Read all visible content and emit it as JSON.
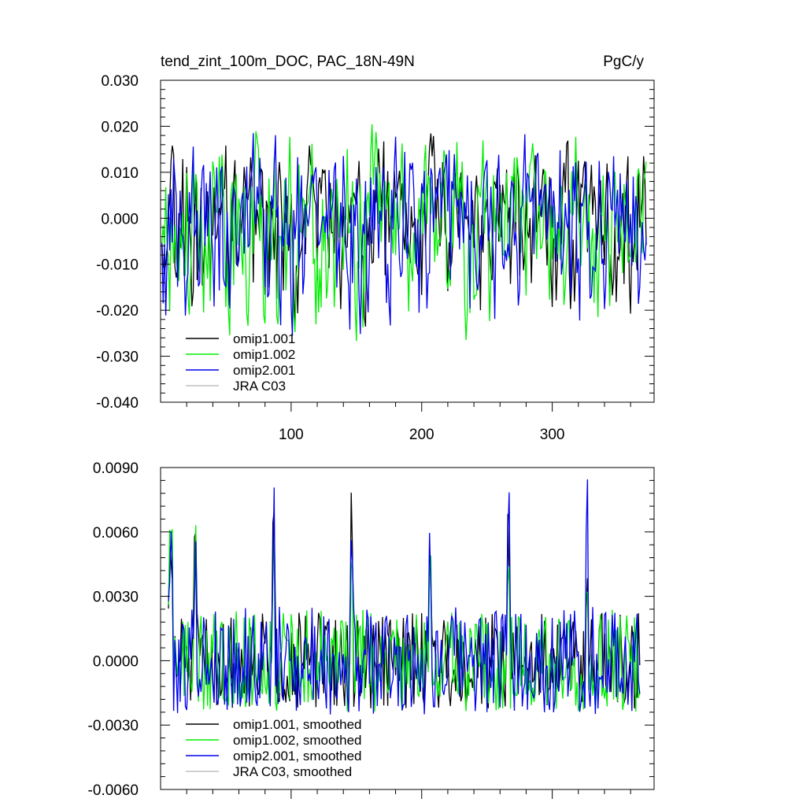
{
  "colors": {
    "omip1_001": "#000000",
    "omip1_002": "#00ee00",
    "omip2_001": "#0000ee",
    "jra_c03": "#c0c0c0",
    "frame": "#000000",
    "background": "#ffffff"
  },
  "chart_data": [
    {
      "type": "line",
      "title": "tend_zint_100m_DOC, PAC_18N-49N",
      "units": "PgC/y",
      "xlim": [
        0,
        378
      ],
      "ylim": [
        -0.04,
        0.03
      ],
      "xticks": [
        100,
        200,
        300
      ],
      "xtick_labels": [
        "100",
        "200",
        "300"
      ],
      "yticks": [
        -0.04,
        -0.03,
        -0.02,
        -0.01,
        0.0,
        0.01,
        0.02,
        0.03
      ],
      "ytick_labels": [
        "-0.040",
        "-0.030",
        "-0.020",
        "-0.010",
        "0.000",
        "0.010",
        "0.020",
        "0.030"
      ],
      "grid": false,
      "legend_position": "bottom-left",
      "series": [
        {
          "name": "omip1.001",
          "color_key": "omip1_001",
          "x_start": 1,
          "x_end": 372,
          "n": 372,
          "style": "noisy",
          "amplitude": 0.0095,
          "seed": 11,
          "visible": true
        },
        {
          "name": "omip1.002",
          "color_key": "omip1_002",
          "x_start": 1,
          "x_end": 372,
          "n": 372,
          "style": "noisy",
          "amplitude": 0.0105,
          "seed": 23,
          "visible": true
        },
        {
          "name": "omip2.001",
          "color_key": "omip2_001",
          "x_start": 1,
          "x_end": 372,
          "n": 372,
          "style": "noisy",
          "amplitude": 0.0105,
          "seed": 37,
          "visible": true
        },
        {
          "name": "JRA C03",
          "color_key": "jra_c03",
          "visible": false
        }
      ]
    },
    {
      "type": "line",
      "title": "",
      "xlim": [
        0,
        378
      ],
      "ylim": [
        -0.006,
        0.009
      ],
      "xticks": [
        100,
        200,
        300
      ],
      "xtick_labels": [
        "",
        "",
        ""
      ],
      "yticks": [
        -0.006,
        -0.003,
        0.0,
        0.003,
        0.006,
        0.009
      ],
      "ytick_labels": [
        "-0.0060",
        "-0.0030",
        "0.0000",
        "0.0030",
        "0.0060",
        "0.0090"
      ],
      "grid": false,
      "legend_position": "bottom-left",
      "series": [
        {
          "name": "omip1.001, smoothed",
          "color_key": "omip1_001",
          "x_start": 6,
          "x_end": 367,
          "n": 362,
          "style": "smoothed",
          "amplitude": 0.0016,
          "seed": 51,
          "visible": true
        },
        {
          "name": "omip1.002, smoothed",
          "color_key": "omip1_002",
          "x_start": 6,
          "x_end": 367,
          "n": 362,
          "style": "smoothed",
          "amplitude": 0.0017,
          "seed": 63,
          "visible": true
        },
        {
          "name": "omip2.001, smoothed",
          "color_key": "omip2_001",
          "x_start": 6,
          "x_end": 367,
          "n": 362,
          "style": "smoothed",
          "amplitude": 0.0018,
          "seed": 79,
          "visible": true
        },
        {
          "name": "JRA C03, smoothed",
          "color_key": "jra_c03",
          "visible": false
        }
      ]
    }
  ]
}
